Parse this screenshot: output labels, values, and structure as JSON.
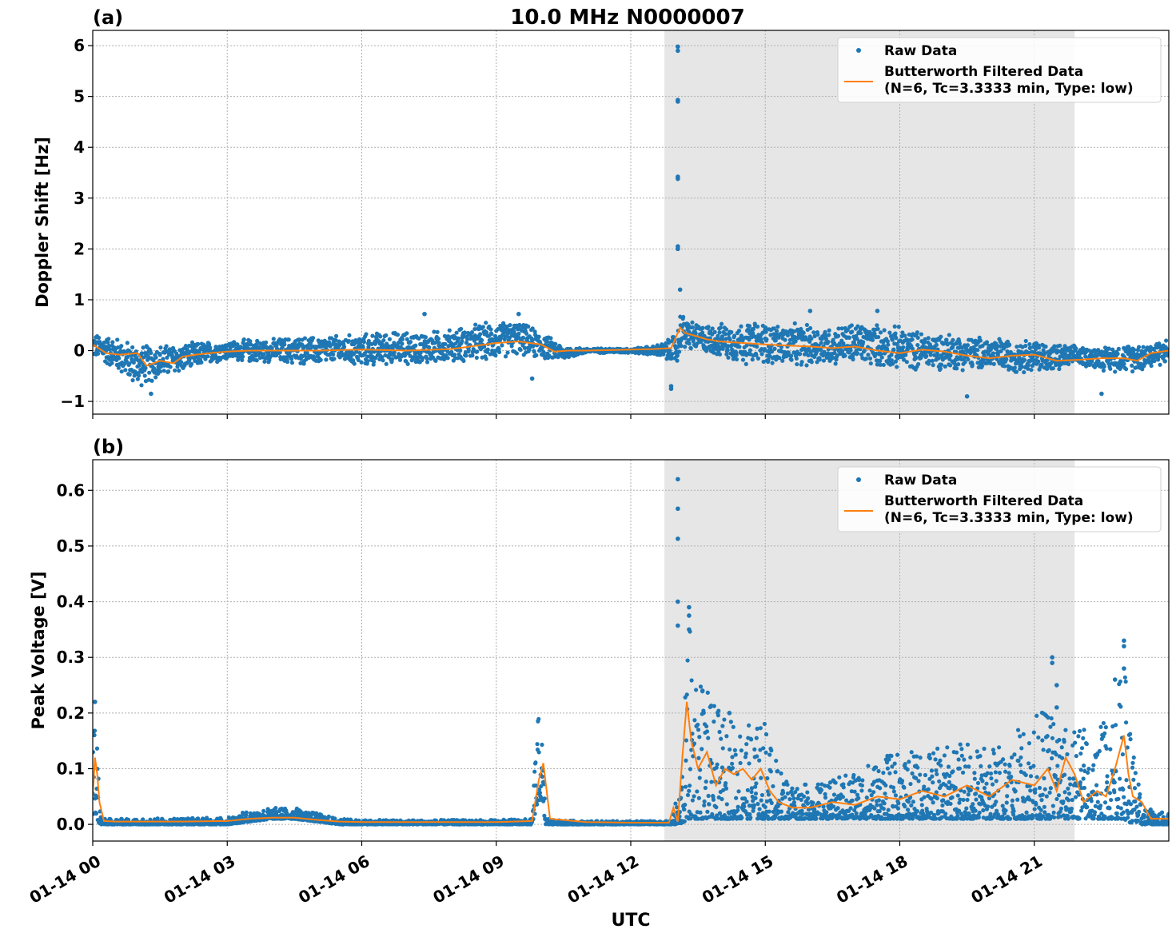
{
  "figure": {
    "title": "10.0 MHz N0000007",
    "xlabel": "UTC"
  },
  "chart_data": [
    {
      "type": "scatter",
      "panel_label": "(a)",
      "ylabel": "Doppler Shift [Hz]",
      "xlim": [
        "2024-01-14T00:00",
        "2024-01-15T00:00"
      ],
      "ylim": [
        -1.25,
        6.3
      ],
      "yticks": [
        -1,
        0,
        1,
        2,
        3,
        4,
        5,
        6
      ],
      "ytick_labels": [
        "−1",
        "0",
        "1",
        "2",
        "3",
        "4",
        "5",
        "6"
      ],
      "xticks": [
        "01-14 00",
        "01-14 03",
        "01-14 06",
        "01-14 09",
        "01-14 12",
        "01-14 15",
        "01-14 18",
        "01-14 21"
      ],
      "xticks_hours": [
        0,
        3,
        6,
        9,
        12,
        15,
        18,
        21
      ],
      "grid": true,
      "legend_position": "top-right",
      "shaded_span_hours": [
        12.75,
        21.9
      ],
      "series": [
        {
          "name": "Raw Data",
          "kind": "points",
          "color": "#1f77b4",
          "x_hours": [
            0,
            0.5,
            1,
            1.3,
            1.6,
            2,
            2.5,
            3,
            3.5,
            4,
            4.5,
            5,
            5.5,
            6,
            6.5,
            7,
            7.5,
            8,
            8.5,
            9,
            9.5,
            10,
            10.5,
            11,
            11.5,
            12,
            12.5,
            12.8,
            13.05,
            13.1,
            13.3,
            13.5,
            14,
            14.5,
            15,
            15.5,
            16,
            16.5,
            17,
            17.5,
            18,
            18.5,
            19,
            19.5,
            20,
            20.5,
            21,
            21.5,
            22,
            22.5,
            23,
            23.5,
            24
          ],
          "y_center": [
            0.1,
            -0.05,
            -0.3,
            -0.25,
            -0.2,
            -0.15,
            -0.05,
            0.0,
            0.0,
            0.0,
            0.0,
            0.0,
            0.02,
            0.0,
            0.05,
            0.05,
            0.05,
            0.1,
            0.15,
            0.2,
            0.25,
            0.1,
            -0.05,
            0.0,
            0.0,
            0.0,
            0.0,
            0.0,
            0.05,
            0.4,
            0.3,
            0.25,
            0.2,
            0.15,
            0.15,
            0.1,
            0.1,
            0.1,
            0.15,
            0.1,
            0.05,
            0.0,
            0.0,
            -0.05,
            -0.05,
            -0.1,
            -0.1,
            -0.15,
            -0.1,
            -0.15,
            -0.15,
            -0.1,
            0.0
          ],
          "y_spread": [
            0.25,
            0.35,
            0.45,
            0.4,
            0.35,
            0.3,
            0.25,
            0.2,
            0.25,
            0.25,
            0.3,
            0.3,
            0.3,
            0.35,
            0.35,
            0.35,
            0.35,
            0.35,
            0.4,
            0.4,
            0.35,
            0.3,
            0.15,
            0.05,
            0.05,
            0.05,
            0.1,
            0.2,
            0.4,
            0.4,
            0.35,
            0.3,
            0.35,
            0.45,
            0.45,
            0.45,
            0.45,
            0.4,
            0.45,
            0.45,
            0.45,
            0.4,
            0.4,
            0.35,
            0.35,
            0.35,
            0.35,
            0.3,
            0.2,
            0.25,
            0.3,
            0.3,
            0.25
          ],
          "outliers": [
            [
              13.05,
              5.98
            ],
            [
              13.05,
              5.9
            ],
            [
              13.05,
              4.93
            ],
            [
              13.05,
              4.9
            ],
            [
              13.05,
              3.42
            ],
            [
              13.05,
              3.38
            ],
            [
              13.05,
              2.05
            ],
            [
              13.05,
              2.0
            ],
            [
              13.1,
              1.2
            ],
            [
              12.9,
              -0.75
            ],
            [
              12.9,
              -0.7
            ],
            [
              7.4,
              0.72
            ],
            [
              9.5,
              0.72
            ],
            [
              9.8,
              -0.55
            ],
            [
              1.3,
              -0.85
            ],
            [
              19.5,
              -0.9
            ],
            [
              22.5,
              -0.85
            ],
            [
              17.5,
              0.78
            ],
            [
              16.0,
              0.78
            ]
          ]
        },
        {
          "name": "Butterworth Filtered Data\n(N=6, Tc=3.3333 min, Type: low)",
          "kind": "line",
          "color": "#ff7f0e",
          "x_hours": [
            0,
            0.3,
            0.6,
            1,
            1.2,
            1.5,
            1.8,
            2,
            2.3,
            2.6,
            3,
            3.5,
            4,
            5,
            6,
            7,
            8,
            9,
            9.5,
            10,
            10.3,
            10.6,
            11,
            12,
            12.5,
            12.9,
            13.1,
            13.2,
            13.4,
            13.7,
            14,
            14.5,
            15,
            15.5,
            16,
            16.5,
            17,
            17.5,
            18,
            18.5,
            19,
            19.5,
            20,
            20.5,
            21,
            21.5,
            22,
            22.5,
            23,
            23.3,
            23.6,
            24
          ],
          "y": [
            0.12,
            -0.05,
            -0.08,
            -0.05,
            -0.3,
            -0.2,
            -0.25,
            -0.12,
            -0.08,
            -0.05,
            -0.02,
            0.0,
            0.0,
            0.0,
            0.02,
            0.0,
            0.03,
            0.15,
            0.18,
            0.12,
            -0.02,
            0.0,
            0.0,
            0.02,
            0.03,
            0.05,
            0.45,
            0.35,
            0.3,
            0.22,
            0.18,
            0.15,
            0.12,
            0.1,
            0.08,
            0.05,
            0.08,
            0.0,
            -0.05,
            0.02,
            -0.02,
            -0.1,
            -0.15,
            -0.1,
            -0.08,
            -0.2,
            -0.18,
            -0.15,
            -0.15,
            -0.2,
            -0.05,
            0.0
          ]
        }
      ]
    },
    {
      "type": "scatter",
      "panel_label": "(b)",
      "ylabel": "Peak Voltage [V]",
      "xlim": [
        "2024-01-14T00:00",
        "2024-01-15T00:00"
      ],
      "ylim": [
        -0.03,
        0.655
      ],
      "yticks": [
        0.0,
        0.1,
        0.2,
        0.3,
        0.4,
        0.5,
        0.6
      ],
      "ytick_labels": [
        "0.0",
        "0.1",
        "0.2",
        "0.3",
        "0.4",
        "0.5",
        "0.6"
      ],
      "xticks": [
        "01-14 00",
        "01-14 03",
        "01-14 06",
        "01-14 09",
        "01-14 12",
        "01-14 15",
        "01-14 18",
        "01-14 21"
      ],
      "xticks_hours": [
        0,
        3,
        6,
        9,
        12,
        15,
        18,
        21
      ],
      "grid": true,
      "legend_position": "top-right",
      "shaded_span_hours": [
        12.75,
        21.9
      ],
      "series": [
        {
          "name": "Raw Data",
          "kind": "points",
          "color": "#1f77b4",
          "x_hours": [
            0,
            0.05,
            0.1,
            0.15,
            0.2,
            0.5,
            1,
            2,
            3,
            3.5,
            4,
            4.5,
            5,
            5.5,
            6,
            7,
            8,
            9,
            9.8,
            9.9,
            10,
            10.1,
            10.2,
            11,
            12,
            12.5,
            12.9,
            13.0,
            13.1,
            13.3,
            13.5,
            13.8,
            14,
            14.3,
            14.6,
            14.8,
            15,
            15.3,
            15.6,
            16,
            16.5,
            17,
            17.5,
            18,
            18.5,
            19,
            19.5,
            20,
            20.5,
            21,
            21.5,
            21.8,
            22,
            22.3,
            22.6,
            22.8,
            23,
            23.2,
            23.4,
            24
          ],
          "y_low": [
            0.0,
            0.02,
            0.01,
            0.0,
            0.0,
            0.0,
            0.0,
            0.0,
            0.0,
            0.005,
            0.01,
            0.01,
            0.005,
            0.0,
            0.0,
            0.0,
            0.0,
            0.0,
            0.0,
            0.03,
            0.05,
            0.0,
            0.0,
            0.0,
            0.0,
            0.0,
            0.0,
            0.0,
            0.0,
            0.01,
            0.01,
            0.01,
            0.01,
            0.01,
            0.01,
            0.01,
            0.01,
            0.01,
            0.01,
            0.01,
            0.01,
            0.01,
            0.01,
            0.01,
            0.01,
            0.01,
            0.01,
            0.01,
            0.01,
            0.01,
            0.01,
            0.01,
            0.01,
            0.01,
            0.01,
            0.01,
            0.01,
            0.0,
            0.0,
            0.0
          ],
          "y_high": [
            0.2,
            0.22,
            0.18,
            0.05,
            0.01,
            0.01,
            0.01,
            0.012,
            0.012,
            0.025,
            0.03,
            0.03,
            0.02,
            0.01,
            0.008,
            0.008,
            0.008,
            0.008,
            0.01,
            0.19,
            0.2,
            0.02,
            0.008,
            0.006,
            0.006,
            0.006,
            0.006,
            0.04,
            0.06,
            0.36,
            0.3,
            0.22,
            0.2,
            0.19,
            0.18,
            0.18,
            0.19,
            0.1,
            0.08,
            0.07,
            0.08,
            0.1,
            0.12,
            0.13,
            0.13,
            0.14,
            0.15,
            0.14,
            0.16,
            0.2,
            0.22,
            0.15,
            0.2,
            0.15,
            0.2,
            0.22,
            0.31,
            0.15,
            0.03,
            0.02
          ],
          "outliers": [
            [
              13.05,
              0.62
            ],
            [
              13.05,
              0.567
            ],
            [
              13.05,
              0.513
            ],
            [
              13.05,
              0.4
            ],
            [
              13.05,
              0.357
            ],
            [
              13.3,
              0.39
            ],
            [
              13.3,
              0.375
            ],
            [
              13.3,
              0.35
            ],
            [
              21.4,
              0.3
            ],
            [
              21.4,
              0.29
            ],
            [
              23.0,
              0.33
            ],
            [
              23.0,
              0.32
            ],
            [
              22.8,
              0.26
            ],
            [
              23.0,
              0.28
            ],
            [
              21.5,
              0.25
            ],
            [
              21.5,
              0.21
            ],
            [
              14.2,
              0.2
            ],
            [
              13.6,
              0.24
            ],
            [
              0.05,
              0.22
            ]
          ]
        },
        {
          "name": "Butterworth Filtered Data\n(N=6, Tc=3.3333 min, Type: low)",
          "kind": "line",
          "color": "#ff7f0e",
          "x_hours": [
            0,
            0.05,
            0.1,
            0.15,
            0.25,
            0.5,
            1,
            2,
            3,
            3.5,
            4,
            4.5,
            5,
            5.5,
            6,
            7,
            8,
            9,
            9.8,
            9.95,
            10.05,
            10.2,
            11,
            12,
            12.5,
            12.85,
            12.95,
            13.05,
            13.15,
            13.25,
            13.35,
            13.5,
            13.7,
            13.9,
            14.1,
            14.3,
            14.5,
            14.7,
            14.9,
            15.1,
            15.3,
            15.6,
            16,
            16.5,
            17,
            17.5,
            18,
            18.5,
            19,
            19.5,
            20,
            20.5,
            21,
            21.3,
            21.5,
            21.7,
            21.9,
            22.1,
            22.4,
            22.6,
            22.8,
            23.0,
            23.1,
            23.2,
            23.4,
            23.6,
            24
          ],
          "y": [
            0.05,
            0.12,
            0.09,
            0.04,
            0.006,
            0.005,
            0.005,
            0.005,
            0.006,
            0.01,
            0.012,
            0.012,
            0.008,
            0.005,
            0.004,
            0.004,
            0.004,
            0.004,
            0.006,
            0.08,
            0.11,
            0.01,
            0.004,
            0.003,
            0.003,
            0.003,
            0.03,
            0.005,
            0.12,
            0.22,
            0.15,
            0.1,
            0.13,
            0.07,
            0.1,
            0.09,
            0.1,
            0.08,
            0.1,
            0.06,
            0.04,
            0.03,
            0.03,
            0.04,
            0.035,
            0.05,
            0.045,
            0.06,
            0.05,
            0.07,
            0.05,
            0.08,
            0.07,
            0.1,
            0.06,
            0.12,
            0.09,
            0.04,
            0.06,
            0.05,
            0.1,
            0.16,
            0.09,
            0.05,
            0.04,
            0.01,
            0.01
          ]
        }
      ]
    }
  ]
}
